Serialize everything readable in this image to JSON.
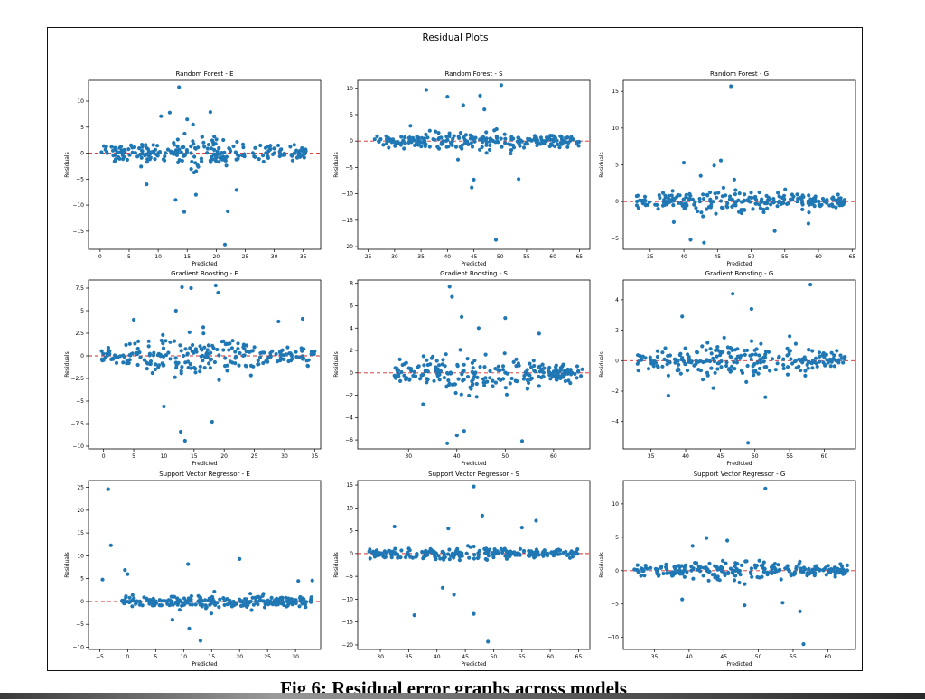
{
  "figure": {
    "suptitle": "Residual Plots",
    "caption": "Fig 6: Residual error graphs across models",
    "point_color": "#1f77b4",
    "ref_line_color": "#d62728"
  },
  "chart_data": [
    {
      "type": "scatter",
      "title": "Random Forest - E",
      "xlabel": "Predicted",
      "ylabel": "Residuals",
      "xlim": [
        -2,
        38
      ],
      "ylim": [
        -18.5,
        14
      ],
      "xticks": [
        0,
        5,
        10,
        15,
        20,
        25,
        30,
        35
      ],
      "yticks": [
        -15,
        -10,
        -5,
        0,
        5,
        10
      ],
      "xrange": [
        0,
        36
      ],
      "spread": 2.2,
      "outliers": [
        [
          13.6,
          12.7
        ],
        [
          10.5,
          7.1
        ],
        [
          15.0,
          6.5
        ],
        [
          19.0,
          7.9
        ],
        [
          12.0,
          7.8
        ],
        [
          22.0,
          -11.2
        ],
        [
          21.5,
          -17.6
        ],
        [
          14.5,
          -11.3
        ],
        [
          13.0,
          -9.0
        ],
        [
          16.5,
          -8.0
        ],
        [
          8.0,
          -6.0
        ],
        [
          23.5,
          -7.1
        ],
        [
          16.0,
          5.5
        ]
      ]
    },
    {
      "type": "scatter",
      "title": "Random Forest - S",
      "xlabel": "Predicted",
      "ylabel": "Residuals",
      "xlim": [
        23,
        67
      ],
      "ylim": [
        -20.5,
        11.5
      ],
      "xticks": [
        25,
        30,
        35,
        40,
        45,
        50,
        55,
        60,
        65
      ],
      "yticks": [
        -20,
        -15,
        -10,
        -5,
        0,
        5,
        10
      ],
      "xrange": [
        26,
        65
      ],
      "spread": 1.4,
      "outliers": [
        [
          36.0,
          9.7
        ],
        [
          50.2,
          10.6
        ],
        [
          40.0,
          8.4
        ],
        [
          46.2,
          8.6
        ],
        [
          43.0,
          6.8
        ],
        [
          47.0,
          6.0
        ],
        [
          44.6,
          -8.8
        ],
        [
          49.2,
          -18.7
        ],
        [
          53.5,
          -7.2
        ],
        [
          42.0,
          -3.5
        ],
        [
          33.0,
          2.9
        ],
        [
          45.0,
          -7.3
        ]
      ]
    },
    {
      "type": "scatter",
      "title": "Random Forest - G",
      "xlabel": "Predicted",
      "ylabel": "Residuals",
      "xlim": [
        31,
        65.5
      ],
      "ylim": [
        -6.5,
        16.5
      ],
      "xticks": [
        35,
        40,
        45,
        50,
        55,
        60,
        65
      ],
      "yticks": [
        -5,
        0,
        5,
        10,
        15
      ],
      "xrange": [
        33,
        64
      ],
      "spread": 1.3,
      "outliers": [
        [
          47.0,
          15.7
        ],
        [
          45.5,
          5.6
        ],
        [
          40.0,
          5.3
        ],
        [
          44.5,
          4.9
        ],
        [
          47.5,
          3.0
        ],
        [
          41.0,
          -5.2
        ],
        [
          43.0,
          -5.6
        ],
        [
          53.5,
          -4.0
        ],
        [
          58.5,
          -3.0
        ],
        [
          42.5,
          3.5
        ],
        [
          38.5,
          -2.8
        ]
      ]
    },
    {
      "type": "scatter",
      "title": "Gradient Boosting - E",
      "xlabel": "Predicted",
      "ylabel": "Residuals",
      "xlim": [
        -2.5,
        36
      ],
      "ylim": [
        -10.3,
        8.4
      ],
      "xticks": [
        0,
        5,
        10,
        15,
        20,
        25,
        30,
        35
      ],
      "yticks": [
        -10,
        -7.5,
        -5,
        -2.5,
        0,
        2.5,
        5,
        7.5
      ],
      "xrange": [
        -0.5,
        35
      ],
      "spread": 1.6,
      "outliers": [
        [
          13.0,
          7.6
        ],
        [
          14.5,
          7.5
        ],
        [
          18.6,
          7.8
        ],
        [
          19.0,
          7.0
        ],
        [
          12.0,
          5.0
        ],
        [
          5.0,
          4.0
        ],
        [
          12.8,
          -8.4
        ],
        [
          13.5,
          -9.4
        ],
        [
          18.0,
          -7.3
        ],
        [
          29.0,
          3.8
        ],
        [
          33.0,
          4.1
        ],
        [
          10.0,
          -5.6
        ]
      ]
    },
    {
      "type": "scatter",
      "title": "Gradient Boosting - S",
      "xlabel": "Predicted",
      "ylabel": "Residuals",
      "xlim": [
        19.5,
        67.5
      ],
      "ylim": [
        -6.8,
        8.3
      ],
      "xticks": [
        30,
        40,
        50,
        60
      ],
      "yticks": [
        -6,
        -4,
        -2,
        0,
        2,
        4,
        6,
        8
      ],
      "xrange": [
        27,
        66
      ],
      "spread": 1.3,
      "outliers": [
        [
          38.5,
          7.7
        ],
        [
          39.0,
          6.8
        ],
        [
          41.0,
          5.0
        ],
        [
          44.5,
          4.0
        ],
        [
          50.0,
          4.9
        ],
        [
          38.0,
          -6.3
        ],
        [
          40.0,
          -5.6
        ],
        [
          41.5,
          -5.2
        ],
        [
          53.5,
          -6.1
        ],
        [
          33.0,
          -2.8
        ],
        [
          57.0,
          3.5
        ]
      ]
    },
    {
      "type": "scatter",
      "title": "Gradient Boosting - G",
      "xlabel": "Predicted",
      "ylabel": "Residuals",
      "xlim": [
        31,
        64.5
      ],
      "ylim": [
        -5.8,
        5.3
      ],
      "xticks": [
        35,
        40,
        45,
        50,
        55,
        60
      ],
      "yticks": [
        -4,
        -2,
        0,
        2,
        4
      ],
      "xrange": [
        33,
        63
      ],
      "spread": 0.9,
      "outliers": [
        [
          46.8,
          4.4
        ],
        [
          58.0,
          5.0
        ],
        [
          49.5,
          3.4
        ],
        [
          39.5,
          2.9
        ],
        [
          49.0,
          -5.4
        ],
        [
          51.5,
          -2.4
        ],
        [
          37.5,
          -2.3
        ],
        [
          44.0,
          -1.8
        ],
        [
          55.0,
          1.6
        ]
      ]
    },
    {
      "type": "scatter",
      "title": "Support Vector Regressor - E",
      "xlabel": "Predicted",
      "ylabel": "Residuals",
      "xlim": [
        -7,
        34.5
      ],
      "ylim": [
        -10.5,
        26.5
      ],
      "xticks": [
        -5,
        0,
        5,
        10,
        15,
        20,
        25,
        30
      ],
      "yticks": [
        -10,
        -5,
        0,
        5,
        10,
        15,
        20,
        25
      ],
      "xrange": [
        -1,
        33
      ],
      "spread": 1.4,
      "outliers": [
        [
          -3.5,
          24.6
        ],
        [
          -3.0,
          12.3
        ],
        [
          -4.5,
          4.8
        ],
        [
          -0.5,
          6.9
        ],
        [
          0.0,
          6.0
        ],
        [
          10.8,
          8.2
        ],
        [
          20.0,
          9.3
        ],
        [
          13.0,
          -8.6
        ],
        [
          11.0,
          -5.9
        ],
        [
          8.0,
          -4.0
        ],
        [
          30.5,
          4.5
        ],
        [
          33.0,
          4.6
        ]
      ]
    },
    {
      "type": "scatter",
      "title": "Support Vector Regressor - S",
      "xlabel": "Predicted",
      "ylabel": "Residuals",
      "xlim": [
        26,
        67
      ],
      "ylim": [
        -21,
        16
      ],
      "xticks": [
        30,
        35,
        40,
        45,
        50,
        55,
        60,
        65
      ],
      "yticks": [
        -20,
        -15,
        -10,
        -5,
        0,
        5,
        10,
        15
      ],
      "xrange": [
        28,
        65
      ],
      "spread": 1.1,
      "outliers": [
        [
          46.5,
          14.7
        ],
        [
          48.0,
          8.3
        ],
        [
          57.5,
          7.2
        ],
        [
          32.5,
          5.9
        ],
        [
          42.0,
          5.5
        ],
        [
          36.0,
          -13.5
        ],
        [
          46.5,
          -13.2
        ],
        [
          49.0,
          -19.3
        ],
        [
          41.0,
          -7.5
        ],
        [
          43.0,
          -9.0
        ],
        [
          55.0,
          5.7
        ]
      ]
    },
    {
      "type": "scatter",
      "title": "Support Vector Regressor - G",
      "xlabel": "Predicted",
      "ylabel": "Residuals",
      "xlim": [
        30.5,
        64
      ],
      "ylim": [
        -11.8,
        13.5
      ],
      "xticks": [
        35,
        40,
        45,
        50,
        55,
        60
      ],
      "yticks": [
        -10,
        -5,
        0,
        5,
        10
      ],
      "xrange": [
        32,
        63
      ],
      "spread": 1.2,
      "outliers": [
        [
          51.0,
          12.3
        ],
        [
          42.5,
          4.9
        ],
        [
          56.0,
          -6.1
        ],
        [
          56.5,
          -11.0
        ],
        [
          48.0,
          -5.2
        ],
        [
          39.0,
          -4.3
        ],
        [
          45.5,
          4.5
        ],
        [
          53.5,
          -4.8
        ],
        [
          40.5,
          3.7
        ]
      ]
    }
  ]
}
